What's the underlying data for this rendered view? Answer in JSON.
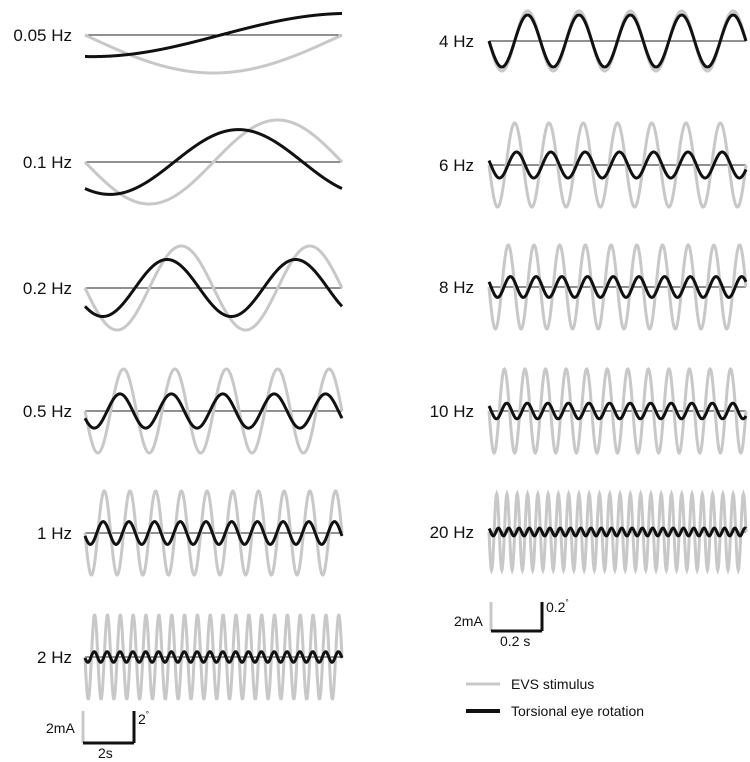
{
  "colors": {
    "stimulus": "#c8c8c8",
    "response": "#111111",
    "baseline": "#222222"
  },
  "legend": {
    "stimulus_label": "EVS stimulus",
    "response_label": "Torsional eye rotation"
  },
  "scalebars": {
    "low": {
      "stimulus_label": "2mA",
      "angle_label": "2",
      "angle_unit": "°",
      "time_label": "2s"
    },
    "high": {
      "stimulus_label": "2mA",
      "angle_label": "0.2",
      "angle_unit": "°",
      "time_label": "0.2 s"
    }
  },
  "chart_data": [
    {
      "type": "line",
      "label": "0.05 Hz",
      "freq_hz": 0.05,
      "window_s": 10,
      "stimulus_cycles": 0.5,
      "stimulus_amplitude_mA": 1,
      "response_amplitude_deg": 0.8,
      "response_phase_lead_deg": 85
    },
    {
      "type": "line",
      "label": "0.1 Hz",
      "freq_hz": 0.1,
      "window_s": 10,
      "stimulus_cycles": 1,
      "stimulus_amplitude_mA": 1,
      "response_amplitude_deg": 1.2,
      "response_phase_lead_deg": 55
    },
    {
      "type": "line",
      "label": "0.2 Hz",
      "freq_hz": 0.2,
      "window_s": 10,
      "stimulus_cycles": 2,
      "stimulus_amplitude_mA": 1,
      "response_amplitude_deg": 0.75,
      "response_phase_lead_deg": 40
    },
    {
      "type": "line",
      "label": "0.5 Hz",
      "freq_hz": 0.5,
      "window_s": 10,
      "stimulus_cycles": 5,
      "stimulus_amplitude_mA": 1,
      "response_amplitude_deg": 0.45,
      "response_phase_lead_deg": 25
    },
    {
      "type": "line",
      "label": "1 Hz",
      "freq_hz": 1,
      "window_s": 10,
      "stimulus_cycles": 10,
      "stimulus_amplitude_mA": 1,
      "response_amplitude_deg": 0.3,
      "response_phase_lead_deg": 15
    },
    {
      "type": "line",
      "label": "2 Hz",
      "freq_hz": 2,
      "window_s": 10,
      "stimulus_cycles": 20,
      "stimulus_amplitude_mA": 1,
      "response_amplitude_deg": 0.14,
      "response_phase_lead_deg": 10
    },
    {
      "type": "line",
      "label": "4 Hz",
      "freq_hz": 4,
      "window_s": 1.25,
      "stimulus_cycles": 5,
      "stimulus_amplitude_mA": 1,
      "response_amplitude_deg": 0.1,
      "response_phase_lead_deg": 0
    },
    {
      "type": "line",
      "label": "6 Hz",
      "freq_hz": 6,
      "window_s": 1.25,
      "stimulus_cycles": 7.5,
      "stimulus_amplitude_mA": 1,
      "response_amplitude_deg": 0.05,
      "response_phase_lead_deg": -20
    },
    {
      "type": "line",
      "label": "8 Hz",
      "freq_hz": 8,
      "window_s": 1.25,
      "stimulus_cycles": 10,
      "stimulus_amplitude_mA": 1,
      "response_amplitude_deg": 0.04,
      "response_phase_lead_deg": -30
    },
    {
      "type": "line",
      "label": "10 Hz",
      "freq_hz": 10,
      "window_s": 1.25,
      "stimulus_cycles": 12.5,
      "stimulus_amplitude_mA": 1,
      "response_amplitude_deg": 0.03,
      "response_phase_lead_deg": -40
    },
    {
      "type": "line",
      "label": "20 Hz",
      "freq_hz": 20,
      "window_s": 1.25,
      "stimulus_cycles": 25,
      "stimulus_amplitude_mA": 1,
      "response_amplitude_deg": 0.015,
      "response_phase_lead_deg": -60
    }
  ]
}
